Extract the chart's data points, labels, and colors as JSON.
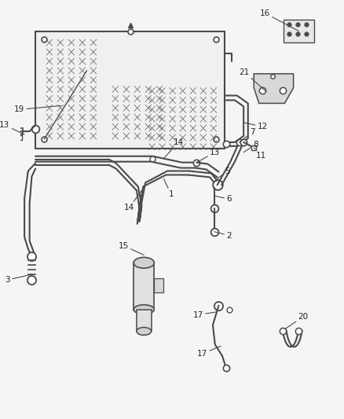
{
  "bg_color": "#f5f5f5",
  "line_color": "#4a4a4a",
  "lw_main": 1.5,
  "lw_thin": 0.9,
  "fig_w": 4.38,
  "fig_h": 5.33,
  "dpi": 100
}
